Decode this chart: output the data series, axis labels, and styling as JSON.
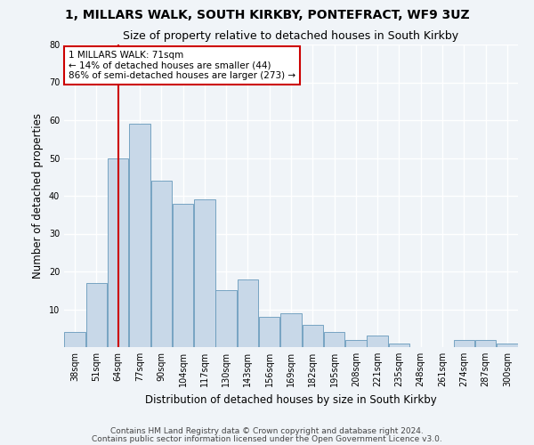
{
  "title1": "1, MILLARS WALK, SOUTH KIRKBY, PONTEFRACT, WF9 3UZ",
  "title2": "Size of property relative to detached houses in South Kirkby",
  "xlabel": "Distribution of detached houses by size in South Kirkby",
  "ylabel": "Number of detached properties",
  "bin_labels": [
    "38sqm",
    "51sqm",
    "64sqm",
    "77sqm",
    "90sqm",
    "104sqm",
    "117sqm",
    "130sqm",
    "143sqm",
    "156sqm",
    "169sqm",
    "182sqm",
    "195sqm",
    "208sqm",
    "221sqm",
    "235sqm",
    "248sqm",
    "261sqm",
    "274sqm",
    "287sqm",
    "300sqm"
  ],
  "bar_values": [
    4,
    17,
    50,
    59,
    44,
    38,
    39,
    15,
    18,
    8,
    9,
    6,
    4,
    2,
    3,
    1,
    0,
    0,
    2,
    2,
    1
  ],
  "bar_color": "#c8d8e8",
  "bar_edge_color": "#6699bb",
  "bg_color": "#f0f4f8",
  "grid_color": "#ffffff",
  "annotation_box_text": "1 MILLARS WALK: 71sqm\n← 14% of detached houses are smaller (44)\n86% of semi-detached houses are larger (273) →",
  "annotation_box_color": "#cc0000",
  "vline_x": 2,
  "vline_color": "#cc0000",
  "ylim": [
    0,
    80
  ],
  "yticks": [
    0,
    10,
    20,
    30,
    40,
    50,
    60,
    70,
    80
  ],
  "footnote1": "Contains HM Land Registry data © Crown copyright and database right 2024.",
  "footnote2": "Contains public sector information licensed under the Open Government Licence v3.0.",
  "title1_fontsize": 10,
  "title2_fontsize": 9,
  "xlabel_fontsize": 8.5,
  "ylabel_fontsize": 8.5,
  "annotation_fontsize": 7.5,
  "footnote_fontsize": 6.5,
  "tick_fontsize": 7
}
